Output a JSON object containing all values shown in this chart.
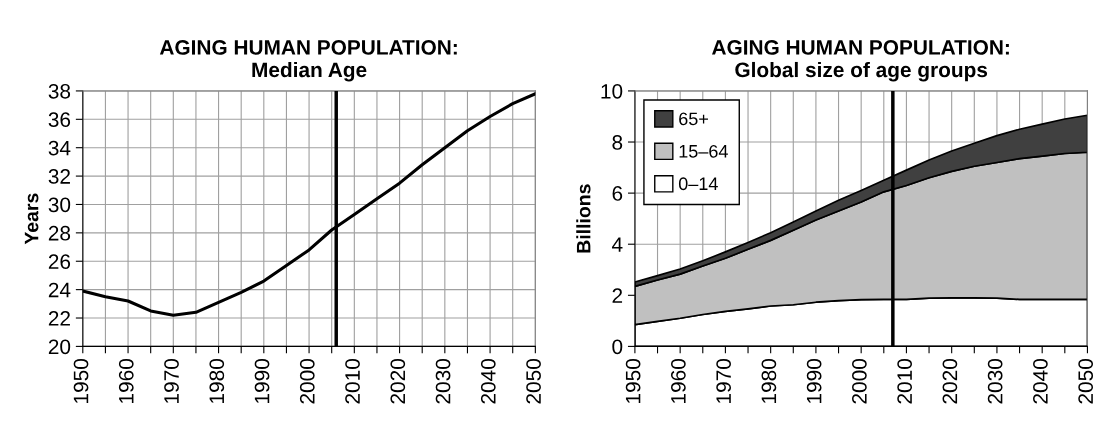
{
  "chart_data": [
    {
      "type": "line",
      "title": "AGING HUMAN POPULATION:\nMedian Age",
      "ylabel": "Years",
      "x": [
        1950,
        1955,
        1960,
        1965,
        1970,
        1975,
        1980,
        1985,
        1990,
        1995,
        2000,
        2005,
        2010,
        2015,
        2020,
        2025,
        2030,
        2035,
        2040,
        2045,
        2050
      ],
      "series": [
        {
          "color": "#000000",
          "values": [
            23.9,
            23.5,
            23.2,
            22.5,
            22.2,
            22.4,
            23.1,
            23.8,
            24.6,
            25.7,
            26.8,
            28.2,
            29.3,
            30.4,
            31.5,
            32.8,
            34.0,
            35.2,
            36.2,
            37.1,
            37.8
          ]
        }
      ],
      "xlim": [
        1950,
        2050
      ],
      "ylim": [
        20,
        38
      ],
      "xticks": [
        1950,
        {
          "value": 1955,
          "label": null
        },
        1960,
        {
          "value": 1965,
          "label": null
        },
        1970,
        {
          "value": 1975,
          "label": null
        },
        1980,
        {
          "value": 1985,
          "label": null
        },
        1990,
        {
          "value": 1995,
          "label": null
        },
        2000,
        {
          "value": 2005,
          "label": null
        },
        2010,
        {
          "value": 2015,
          "label": null
        },
        2020,
        {
          "value": 2025,
          "label": null
        },
        2030,
        {
          "value": 2035,
          "label": null
        },
        2040,
        {
          "value": 2045,
          "label": null
        },
        2050
      ],
      "yticks": [
        20,
        22,
        24,
        26,
        28,
        30,
        32,
        34,
        36,
        38
      ],
      "grid": true,
      "legend": false,
      "ref_lines": [
        {
          "axis": "x",
          "value": 2006,
          "color": "#000000"
        }
      ]
    },
    {
      "type": "area",
      "stacked": true,
      "title": "AGING HUMAN POPULATION:\nGlobal size of age groups",
      "ylabel": "Billions",
      "x": [
        1950,
        1955,
        1960,
        1965,
        1970,
        1975,
        1980,
        1985,
        1990,
        1995,
        2000,
        2005,
        2010,
        2015,
        2020,
        2025,
        2030,
        2035,
        2040,
        2045,
        2050
      ],
      "series": [
        {
          "name": "0–14",
          "color": "#ffffff",
          "values": [
            0.85,
            0.98,
            1.1,
            1.25,
            1.37,
            1.47,
            1.58,
            1.63,
            1.73,
            1.79,
            1.83,
            1.84,
            1.84,
            1.89,
            1.9,
            1.9,
            1.89,
            1.84,
            1.84,
            1.84,
            1.84
          ]
        },
        {
          "name": "15–64",
          "color": "#c0c0c0",
          "values": [
            1.5,
            1.62,
            1.73,
            1.9,
            2.08,
            2.33,
            2.57,
            2.92,
            3.22,
            3.51,
            3.82,
            4.21,
            4.46,
            4.71,
            4.95,
            5.15,
            5.31,
            5.51,
            5.61,
            5.71,
            5.76
          ]
        },
        {
          "name": "65+",
          "color": "#404040",
          "values": [
            0.17,
            0.17,
            0.2,
            0.2,
            0.25,
            0.27,
            0.3,
            0.32,
            0.35,
            0.42,
            0.45,
            0.45,
            0.6,
            0.7,
            0.8,
            0.9,
            1.05,
            1.15,
            1.25,
            1.35,
            1.45
          ]
        }
      ],
      "xlim": [
        1950,
        2050
      ],
      "ylim": [
        0,
        10
      ],
      "xticks": [
        1950,
        {
          "value": 1955,
          "label": null
        },
        1960,
        {
          "value": 1965,
          "label": null
        },
        1970,
        {
          "value": 1975,
          "label": null
        },
        1980,
        {
          "value": 1985,
          "label": null
        },
        1990,
        {
          "value": 1995,
          "label": null
        },
        2000,
        {
          "value": 2005,
          "label": null
        },
        2010,
        {
          "value": 2015,
          "label": null
        },
        2020,
        {
          "value": 2025,
          "label": null
        },
        2030,
        {
          "value": 2035,
          "label": null
        },
        2040,
        {
          "value": 2045,
          "label": null
        },
        2050
      ],
      "yticks": [
        0,
        2,
        4,
        6,
        8,
        10
      ],
      "grid": true,
      "legend": "top left",
      "ref_lines": [
        {
          "axis": "x",
          "value": 2007,
          "color": "#000000"
        }
      ]
    }
  ]
}
